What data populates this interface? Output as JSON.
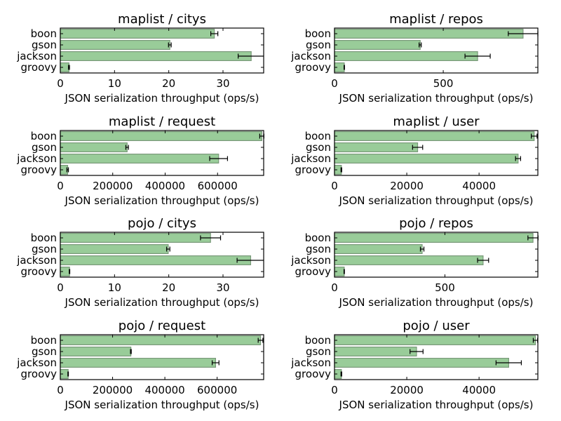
{
  "chart_data": [
    {
      "type": "bar",
      "orientation": "horizontal",
      "title": "maplist / citys",
      "xlabel": "JSON serialization throughput (ops/s)",
      "categories": [
        "boon",
        "gson",
        "jackson",
        "groovy"
      ],
      "values": [
        28.4,
        20.2,
        35.2,
        1.6
      ],
      "errors": [
        0.65,
        0.25,
        2.4,
        0.1
      ],
      "xlim": [
        0,
        37.5
      ],
      "xticks": [
        0,
        10,
        20,
        30
      ],
      "xtick_labels": [
        "0",
        "10",
        "20",
        "30"
      ],
      "grid": false
    },
    {
      "type": "bar",
      "orientation": "horizontal",
      "title": "maplist / repos",
      "xlabel": "JSON serialization throughput (ops/s)",
      "categories": [
        "boon",
        "gson",
        "jackson",
        "groovy"
      ],
      "values": [
        867,
        394,
        658,
        45
      ],
      "errors": [
        68,
        5,
        58,
        1
      ],
      "xlim": [
        0,
        935
      ],
      "xticks": [
        0,
        500
      ],
      "xtick_labels": [
        "0",
        "500"
      ],
      "grid": false
    },
    {
      "type": "bar",
      "orientation": "horizontal",
      "title": "maplist / request",
      "xlabel": "JSON serialization throughput (ops/s)",
      "categories": [
        "boon",
        "gson",
        "jackson",
        "groovy"
      ],
      "values": [
        769000,
        255000,
        604000,
        28000
      ],
      "errors": [
        8000,
        5000,
        34000,
        3000
      ],
      "xlim": [
        0,
        776000
      ],
      "xticks": [
        0,
        200000,
        400000,
        600000
      ],
      "xtick_labels": [
        "0",
        "200000",
        "400000",
        "600000"
      ],
      "grid": false
    },
    {
      "type": "bar",
      "orientation": "horizontal",
      "title": "maplist / user",
      "xlabel": "JSON serialization throughput (ops/s)",
      "categories": [
        "boon",
        "gson",
        "jackson",
        "groovy"
      ],
      "values": [
        55250,
        23000,
        50800,
        1900
      ],
      "errors": [
        800,
        1400,
        700,
        100
      ],
      "xlim": [
        0,
        56270
      ],
      "xticks": [
        0,
        20000,
        40000
      ],
      "xtick_labels": [
        "0",
        "20000",
        "40000"
      ],
      "grid": false
    },
    {
      "type": "bar",
      "orientation": "horizontal",
      "title": "pojo / citys",
      "xlabel": "JSON serialization throughput (ops/s)",
      "categories": [
        "boon",
        "gson",
        "jackson",
        "groovy"
      ],
      "values": [
        27.7,
        19.9,
        35.1,
        1.7
      ],
      "errors": [
        1.85,
        0.3,
        2.5,
        0.05
      ],
      "xlim": [
        0,
        37.5
      ],
      "xticks": [
        0,
        10,
        20,
        30
      ],
      "xtick_labels": [
        "0",
        "10",
        "20",
        "30"
      ],
      "grid": false
    },
    {
      "type": "bar",
      "orientation": "horizontal",
      "title": "pojo / repos",
      "xlabel": "JSON serialization throughput (ops/s)",
      "categories": [
        "boon",
        "gson",
        "jackson",
        "groovy"
      ],
      "values": [
        899,
        397,
        673,
        44
      ],
      "errors": [
        23,
        8,
        25,
        1
      ],
      "xlim": [
        0,
        921
      ],
      "xticks": [
        0,
        500
      ],
      "xtick_labels": [
        "0",
        "500"
      ],
      "grid": false
    },
    {
      "type": "bar",
      "orientation": "horizontal",
      "title": "pojo / request",
      "xlabel": "JSON serialization throughput (ops/s)",
      "categories": [
        "boon",
        "gson",
        "jackson",
        "groovy"
      ],
      "values": [
        766000,
        270000,
        594000,
        30000
      ],
      "errors": [
        9000,
        1500,
        13000,
        1000
      ],
      "xlim": [
        0,
        778000
      ],
      "xticks": [
        0,
        200000,
        400000,
        600000
      ],
      "xtick_labels": [
        "0",
        "200000",
        "400000",
        "600000"
      ],
      "grid": false
    },
    {
      "type": "bar",
      "orientation": "horizontal",
      "title": "pojo / user",
      "xlabel": "JSON serialization throughput (ops/s)",
      "categories": [
        "boon",
        "gson",
        "jackson",
        "groovy"
      ],
      "values": [
        55600,
        22700,
        48200,
        1900
      ],
      "errors": [
        600,
        1800,
        3500,
        100
      ],
      "xlim": [
        0,
        56270
      ],
      "xticks": [
        0,
        20000,
        40000
      ],
      "xtick_labels": [
        "0",
        "20000",
        "40000"
      ],
      "grid": false
    }
  ],
  "colors": {
    "bar_fill": "#99cc99",
    "bar_edge": "#7a997a",
    "error": "#000000",
    "axes": "#000000"
  }
}
